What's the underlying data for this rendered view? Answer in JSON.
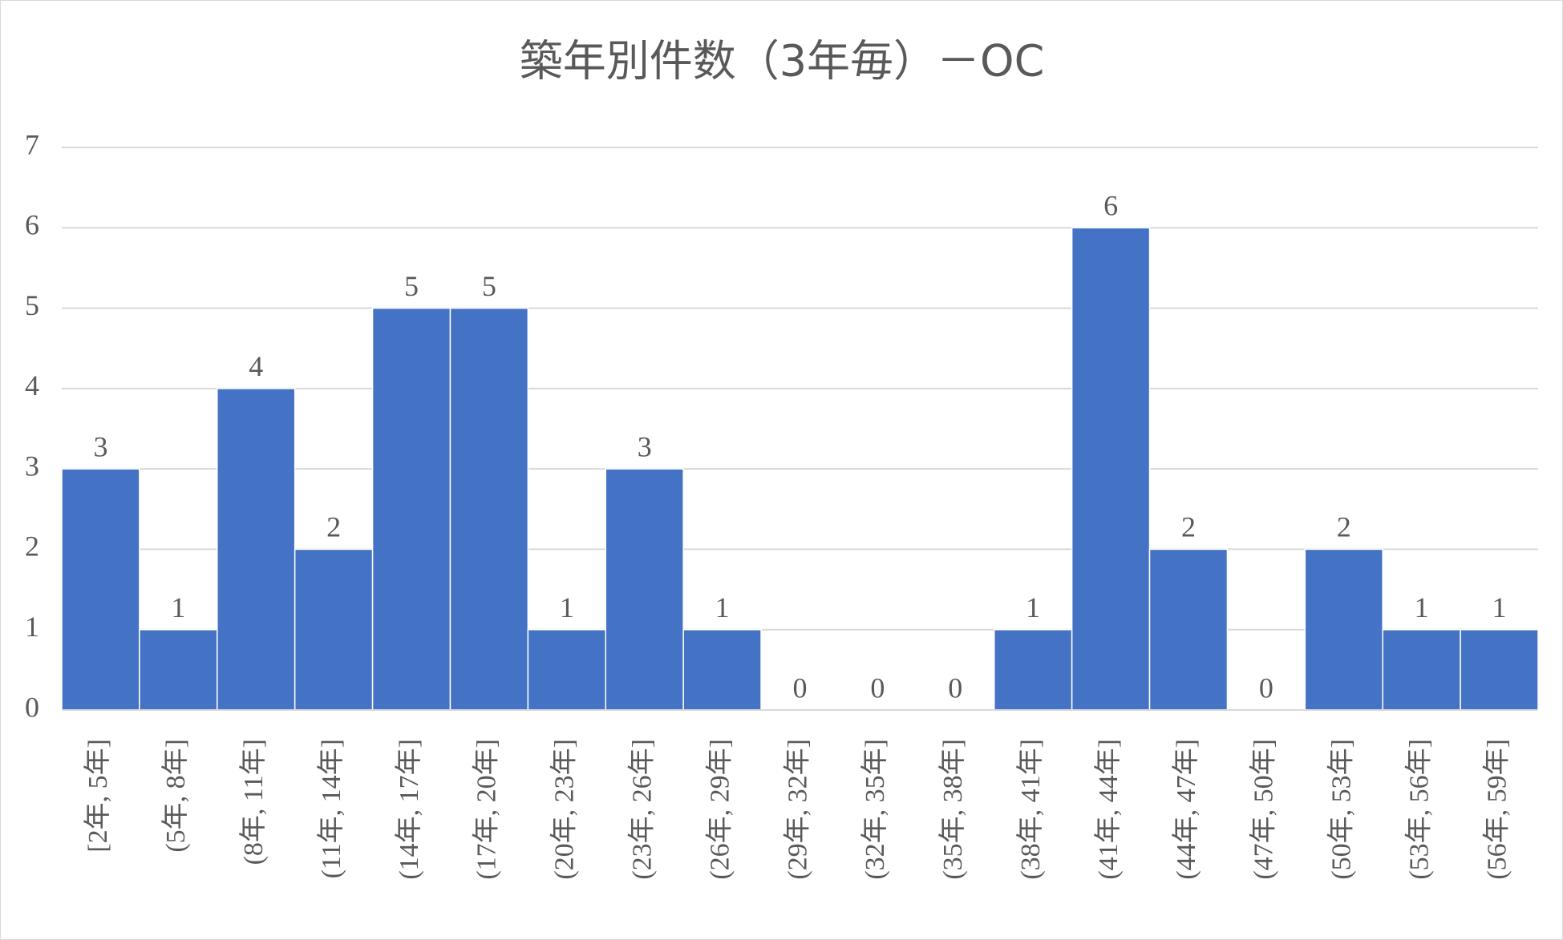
{
  "chart_data": {
    "type": "bar",
    "title": "築年別件数（3年毎）－OC",
    "categories": [
      "[2年, 5年]",
      "(5年, 8年]",
      "(8年, 11年]",
      "(11年, 14年]",
      "(14年, 17年]",
      "(17年, 20年]",
      "(20年, 23年]",
      "(23年, 26年]",
      "(26年, 29年]",
      "(29年, 32年]",
      "(32年, 35年]",
      "(35年, 38年]",
      "(38年, 41年]",
      "(41年, 44年]",
      "(44年, 47年]",
      "(47年, 50年]",
      "(50年, 53年]",
      "(53年, 56年]",
      "(56年, 59年]"
    ],
    "values": [
      3,
      1,
      4,
      2,
      5,
      5,
      1,
      3,
      1,
      0,
      0,
      0,
      1,
      6,
      2,
      0,
      2,
      1,
      1
    ],
    "color": "#4472c4",
    "ylim": [
      0,
      7
    ],
    "yticks": [
      0,
      1,
      2,
      3,
      4,
      5,
      6,
      7
    ],
    "grid": true
  }
}
